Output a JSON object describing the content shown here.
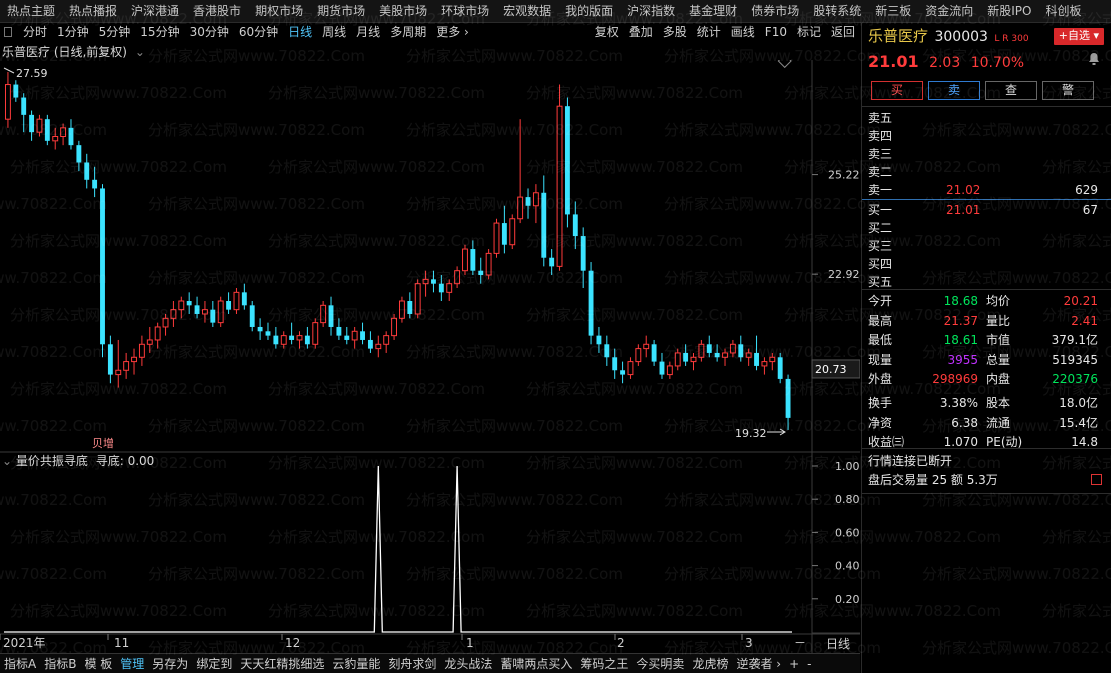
{
  "top_nav": [
    "热点主题",
    "热点播报",
    "沪深港通",
    "香港股市",
    "期权市场",
    "期货市场",
    "美股市场",
    "环球市场",
    "宏观数据",
    "我的版面",
    "沪深指数",
    "基金理财",
    "债券市场",
    "股转系统",
    "新三板",
    "资金流向",
    "新股IPO",
    "科创板"
  ],
  "toolbar": {
    "periods": [
      "分时",
      "1分钟",
      "5分钟",
      "15分钟",
      "30分钟",
      "60分钟",
      "日线",
      "周线",
      "月线",
      "多周期",
      "更多 ›"
    ],
    "active": "日线",
    "tools": [
      "复权",
      "叠加",
      "多股",
      "统计",
      "画线",
      "F10",
      "标记",
      "返回"
    ]
  },
  "chart_title": "乐普医疗 (日线,前复权)",
  "indicator": {
    "name": "量价共振寻底",
    "value_label": "寻底: 0.00",
    "yticks": [
      "1.00",
      "0.80",
      "0.60",
      "0.40",
      "0.20"
    ]
  },
  "price_labels": {
    "high_mark": "27.59",
    "low_mark": "19.32",
    "axis": [
      "25.22",
      "22.92"
    ],
    "last_price": "20.73",
    "event_tag": "贝增"
  },
  "x_axis": {
    "labels": [
      "2021年",
      "11",
      "12",
      "1",
      "2",
      "3"
    ],
    "period": "日线"
  },
  "bottom_tabs": [
    "指标A",
    "指标B",
    "模 板",
    "管理",
    "另存为",
    "绑定到",
    "天天红精挑细选",
    "云豹量能",
    "刻舟求剑",
    "龙头战法",
    "蓄啸两点买入",
    "筹码之王",
    "今买明卖",
    "龙虎榜",
    "逆袭者 ›",
    "+",
    "-"
  ],
  "bottom_active": "管理",
  "stock": {
    "name": "乐普医疗",
    "code": "300003",
    "tags": "L R 300",
    "add_label": "+自选",
    "price": "21.01",
    "change": "2.03",
    "change_pct": "10.70%",
    "buttons": [
      "买",
      "卖",
      "查",
      "警"
    ]
  },
  "orderbook": {
    "sell": [
      {
        "label": "卖五",
        "price": "",
        "vol": ""
      },
      {
        "label": "卖四",
        "price": "",
        "vol": ""
      },
      {
        "label": "卖三",
        "price": "",
        "vol": ""
      },
      {
        "label": "卖二",
        "price": "",
        "vol": ""
      },
      {
        "label": "卖一",
        "price": "21.02",
        "vol": "629"
      }
    ],
    "buy": [
      {
        "label": "买一",
        "price": "21.01",
        "vol": "67"
      },
      {
        "label": "买二",
        "price": "",
        "vol": ""
      },
      {
        "label": "买三",
        "price": "",
        "vol": ""
      },
      {
        "label": "买四",
        "price": "",
        "vol": ""
      },
      {
        "label": "买五",
        "price": "",
        "vol": ""
      }
    ]
  },
  "stats": [
    [
      {
        "l": "今开",
        "v": "18.68",
        "c": "green"
      },
      {
        "l": "均价",
        "v": "20.21",
        "c": "red"
      }
    ],
    [
      {
        "l": "最高",
        "v": "21.37",
        "c": "red"
      },
      {
        "l": "量比",
        "v": "2.41",
        "c": "red"
      }
    ],
    [
      {
        "l": "最低",
        "v": "18.61",
        "c": "green"
      },
      {
        "l": "市值",
        "v": "379.1亿",
        "c": "white"
      }
    ],
    [
      {
        "l": "现量",
        "v": "3955",
        "c": "purple"
      },
      {
        "l": "总量",
        "v": "519345",
        "c": "white"
      }
    ],
    [
      {
        "l": "外盘",
        "v": "298969",
        "c": "red"
      },
      {
        "l": "内盘",
        "v": "220376",
        "c": "green"
      }
    ],
    [
      {
        "l": "换手",
        "v": "3.38%",
        "c": "white"
      },
      {
        "l": "股本",
        "v": "18.0亿",
        "c": "white"
      }
    ],
    [
      {
        "l": "净资",
        "v": "6.38",
        "c": "white"
      },
      {
        "l": "流通",
        "v": "15.4亿",
        "c": "white"
      }
    ],
    [
      {
        "l": "收益㈢",
        "v": "1.070",
        "c": "white"
      },
      {
        "l": "PE(动)",
        "v": "14.8",
        "c": "white"
      }
    ]
  ],
  "status": {
    "line1": "行情连接已断开",
    "line2": "盘后交易量 25 额 5.3万"
  },
  "watermark": "分析家公式网www.70822.Com",
  "colors": {
    "up": "#ff3b3b",
    "down": "#3be3ff",
    "accent": "#4fc3f7",
    "bg": "#000000"
  },
  "chart_data": {
    "type": "candlestick",
    "series": [
      {
        "name": "乐普医疗 日线",
        "ohlc": [
          [
            26.5,
            27.59,
            26.3,
            27.3
          ],
          [
            27.3,
            27.4,
            26.9,
            27.0
          ],
          [
            27.0,
            27.1,
            26.2,
            26.6
          ],
          [
            26.6,
            26.7,
            26.0,
            26.2
          ],
          [
            26.2,
            26.6,
            26.1,
            26.5
          ],
          [
            26.5,
            26.6,
            25.9,
            26.0
          ],
          [
            26.0,
            26.3,
            25.8,
            26.1
          ],
          [
            26.1,
            26.4,
            25.9,
            26.3
          ],
          [
            26.3,
            26.5,
            25.8,
            25.9
          ],
          [
            25.9,
            26.0,
            25.3,
            25.5
          ],
          [
            25.5,
            25.7,
            24.9,
            25.1
          ],
          [
            25.1,
            25.4,
            24.7,
            24.9
          ],
          [
            24.9,
            25.0,
            21.0,
            21.3
          ],
          [
            21.3,
            21.5,
            20.4,
            20.6
          ],
          [
            20.6,
            21.4,
            20.3,
            20.7
          ],
          [
            20.7,
            21.1,
            20.5,
            20.9
          ],
          [
            20.9,
            21.2,
            20.6,
            21.0
          ],
          [
            21.0,
            21.5,
            20.8,
            21.3
          ],
          [
            21.3,
            21.7,
            21.1,
            21.4
          ],
          [
            21.4,
            21.8,
            21.2,
            21.7
          ],
          [
            21.7,
            22.0,
            21.5,
            21.9
          ],
          [
            21.9,
            22.3,
            21.7,
            22.1
          ],
          [
            22.1,
            22.4,
            21.9,
            22.3
          ],
          [
            22.3,
            22.5,
            22.0,
            22.2
          ],
          [
            22.2,
            22.4,
            21.9,
            22.0
          ],
          [
            22.0,
            22.3,
            21.8,
            22.1
          ],
          [
            22.1,
            22.3,
            21.7,
            21.8
          ],
          [
            21.8,
            22.4,
            21.7,
            22.3
          ],
          [
            22.3,
            22.5,
            22.0,
            22.1
          ],
          [
            22.1,
            22.6,
            22.0,
            22.5
          ],
          [
            22.5,
            22.7,
            22.1,
            22.2
          ],
          [
            22.2,
            22.3,
            21.6,
            21.7
          ],
          [
            21.7,
            21.9,
            21.4,
            21.6
          ],
          [
            21.6,
            21.8,
            21.4,
            21.5
          ],
          [
            21.5,
            21.7,
            21.2,
            21.3
          ],
          [
            21.3,
            21.6,
            21.2,
            21.5
          ],
          [
            21.5,
            21.8,
            21.3,
            21.4
          ],
          [
            21.4,
            21.6,
            21.2,
            21.5
          ],
          [
            21.5,
            21.7,
            21.2,
            21.3
          ],
          [
            21.3,
            21.9,
            21.2,
            21.8
          ],
          [
            21.8,
            22.3,
            21.7,
            22.2
          ],
          [
            22.2,
            22.4,
            21.5,
            21.7
          ],
          [
            21.7,
            21.9,
            21.4,
            21.5
          ],
          [
            21.5,
            21.7,
            21.3,
            21.4
          ],
          [
            21.4,
            21.7,
            21.2,
            21.6
          ],
          [
            21.6,
            21.8,
            21.3,
            21.4
          ],
          [
            21.4,
            21.6,
            21.1,
            21.2
          ],
          [
            21.2,
            21.5,
            21.0,
            21.3
          ],
          [
            21.3,
            21.6,
            21.1,
            21.5
          ],
          [
            21.5,
            22.0,
            21.4,
            21.9
          ],
          [
            21.9,
            22.4,
            21.8,
            22.3
          ],
          [
            22.3,
            22.5,
            21.9,
            22.0
          ],
          [
            22.0,
            22.8,
            21.9,
            22.7
          ],
          [
            22.7,
            23.0,
            22.4,
            22.8
          ],
          [
            22.8,
            23.0,
            22.5,
            22.7
          ],
          [
            22.7,
            22.9,
            22.3,
            22.5
          ],
          [
            22.5,
            22.8,
            22.3,
            22.7
          ],
          [
            22.7,
            23.1,
            22.6,
            23.0
          ],
          [
            23.0,
            23.6,
            22.9,
            23.5
          ],
          [
            23.5,
            23.7,
            22.9,
            23.0
          ],
          [
            23.0,
            23.3,
            22.7,
            22.9
          ],
          [
            22.9,
            23.5,
            22.8,
            23.4
          ],
          [
            23.4,
            24.2,
            23.3,
            24.1
          ],
          [
            24.1,
            24.5,
            23.4,
            23.6
          ],
          [
            23.6,
            24.3,
            23.5,
            24.2
          ],
          [
            24.2,
            26.5,
            24.1,
            24.7
          ],
          [
            24.7,
            24.9,
            24.2,
            24.5
          ],
          [
            24.5,
            25.0,
            24.1,
            24.8
          ],
          [
            24.8,
            25.2,
            23.1,
            23.3
          ],
          [
            23.3,
            23.5,
            22.9,
            23.1
          ],
          [
            23.1,
            27.3,
            23.0,
            26.8
          ],
          [
            26.8,
            27.0,
            24.0,
            24.3
          ],
          [
            24.3,
            24.6,
            23.5,
            23.8
          ],
          [
            23.8,
            24.0,
            22.6,
            23.0
          ],
          [
            23.0,
            23.2,
            21.3,
            21.5
          ],
          [
            21.5,
            21.7,
            21.1,
            21.3
          ],
          [
            21.3,
            21.5,
            20.8,
            21.0
          ],
          [
            21.0,
            21.2,
            20.5,
            20.7
          ],
          [
            20.7,
            20.9,
            20.4,
            20.6
          ],
          [
            20.6,
            21.0,
            20.5,
            20.9
          ],
          [
            20.9,
            21.3,
            20.8,
            21.2
          ],
          [
            21.2,
            21.5,
            21.0,
            21.3
          ],
          [
            21.3,
            21.4,
            20.8,
            20.9
          ],
          [
            20.9,
            21.1,
            20.5,
            20.6
          ],
          [
            20.6,
            20.9,
            20.5,
            20.8
          ],
          [
            20.8,
            21.2,
            20.7,
            21.1
          ],
          [
            21.1,
            21.3,
            20.8,
            20.9
          ],
          [
            20.9,
            21.1,
            20.7,
            21.0
          ],
          [
            21.0,
            21.4,
            20.9,
            21.3
          ],
          [
            21.3,
            21.5,
            21.0,
            21.1
          ],
          [
            21.1,
            21.3,
            20.9,
            21.0
          ],
          [
            21.0,
            21.2,
            20.8,
            21.1
          ],
          [
            21.1,
            21.4,
            21.0,
            21.3
          ],
          [
            21.3,
            21.5,
            20.9,
            21.0
          ],
          [
            21.0,
            21.2,
            20.8,
            21.1
          ],
          [
            21.1,
            21.5,
            20.7,
            20.8
          ],
          [
            20.8,
            21.0,
            20.6,
            20.9
          ],
          [
            20.9,
            21.1,
            20.7,
            21.0
          ],
          [
            21.0,
            21.1,
            20.4,
            20.5
          ],
          [
            20.5,
            20.6,
            19.32,
            19.6
          ]
        ]
      },
      {
        "name": "寻底",
        "spikes": [
          {
            "index": 47,
            "value": 1.0
          },
          {
            "index": 57,
            "value": 1.0
          }
        ]
      }
    ],
    "price_axis_ticks": [
      25.22,
      22.92
    ],
    "indicator_axis": [
      0,
      1
    ]
  }
}
